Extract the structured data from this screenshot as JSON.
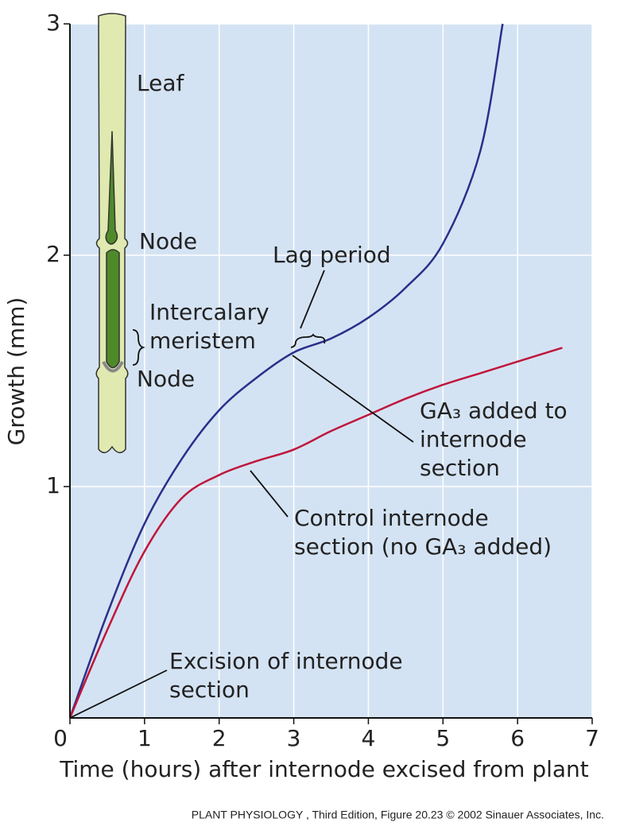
{
  "chart_data": {
    "type": "line",
    "x": [
      0,
      0.5,
      1,
      1.5,
      2,
      2.5,
      3,
      3.5,
      4,
      4.5,
      5,
      5.5,
      5.8,
      6,
      6.6
    ],
    "series": [
      {
        "name": "GA₃ added",
        "color": "#2b2f8a",
        "values": [
          0,
          0.45,
          0.84,
          1.12,
          1.33,
          1.47,
          1.58,
          1.64,
          1.73,
          1.86,
          2.05,
          2.45,
          3.0,
          null,
          null
        ]
      },
      {
        "name": "Control",
        "color": "#c0163b",
        "values": [
          0,
          0.38,
          0.72,
          0.95,
          1.05,
          1.11,
          1.16,
          1.24,
          1.31,
          1.38,
          1.44,
          1.49,
          1.52,
          1.54,
          1.6
        ]
      }
    ],
    "xlim": [
      0,
      7
    ],
    "ylim": [
      0,
      3
    ],
    "xticks": [
      0,
      1,
      2,
      3,
      4,
      5,
      6,
      7
    ],
    "yticks": [
      1,
      2,
      3
    ],
    "xlabel": "Time (hours) after internode excised from plant",
    "ylabel": "Growth (mm)",
    "grid": true,
    "background": "#d4e3f3",
    "annotations": [
      [
        "Lag period"
      ],
      [
        "GA₃ added to",
        "internode",
        "section"
      ],
      [
        "Control internode",
        "section (no GA₃ added)"
      ],
      [
        "Excision of internode",
        "section"
      ]
    ],
    "inset_labels": [
      "Leaf",
      "Node",
      "Intercalary",
      "meristem",
      "Node"
    ],
    "footer": "PLANT PHYSIOLOGY , Third Edition, Figure 20.23  © 2002 Sinauer Associates, Inc."
  }
}
